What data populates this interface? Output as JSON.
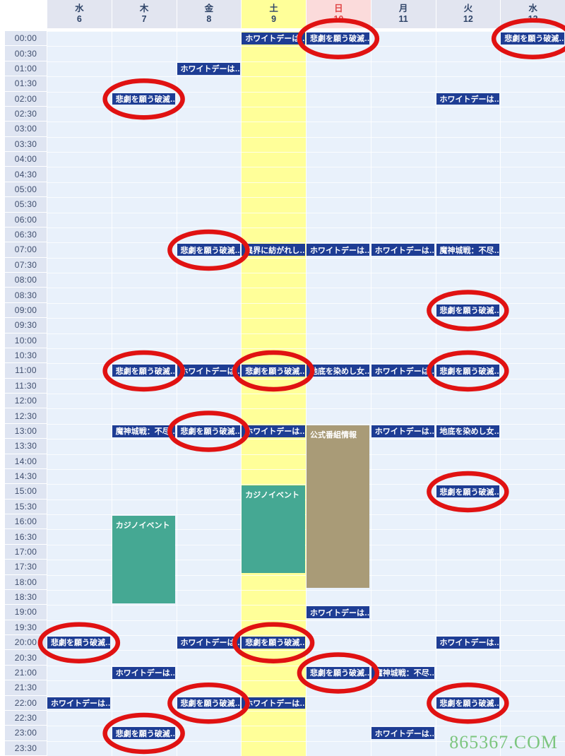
{
  "calendar": {
    "day_headers": [
      {
        "day": "水",
        "date": "6",
        "type": "normal"
      },
      {
        "day": "木",
        "date": "7",
        "type": "normal"
      },
      {
        "day": "金",
        "date": "8",
        "type": "normal"
      },
      {
        "day": "土",
        "date": "9",
        "type": "saturday"
      },
      {
        "day": "日",
        "date": "10",
        "type": "sunday"
      },
      {
        "day": "月",
        "date": "11",
        "type": "normal"
      },
      {
        "day": "火",
        "date": "12",
        "type": "normal"
      },
      {
        "day": "水",
        "date": "13",
        "type": "normal"
      }
    ],
    "time_slots": [
      "00:00",
      "00:30",
      "01:00",
      "01:30",
      "02:00",
      "02:30",
      "03:00",
      "03:30",
      "04:00",
      "04:30",
      "05:00",
      "05:30",
      "06:00",
      "06:30",
      "07:00",
      "07:30",
      "08:00",
      "08:30",
      "09:00",
      "09:30",
      "10:00",
      "10:30",
      "11:00",
      "11:30",
      "12:00",
      "12:30",
      "13:00",
      "13:30",
      "14:00",
      "14:30",
      "15:00",
      "15:30",
      "16:00",
      "16:30",
      "17:00",
      "17:30",
      "18:00",
      "18:30",
      "19:00",
      "19:30",
      "20:00",
      "20:30",
      "21:00",
      "21:30",
      "22:00",
      "22:30",
      "23:00",
      "23:30"
    ],
    "events": [
      {
        "day": 3,
        "time": "00:00",
        "slots": 1,
        "title": "ホワイトデーは…",
        "color": "blue",
        "circled": false
      },
      {
        "day": 4,
        "time": "00:00",
        "slots": 1,
        "title": "悲劇を願う破滅…",
        "color": "blue",
        "circled": true
      },
      {
        "day": 7,
        "time": "00:00",
        "slots": 1,
        "title": "悲劇を願う破滅…",
        "color": "blue",
        "circled": true
      },
      {
        "day": 2,
        "time": "01:00",
        "slots": 1,
        "title": "ホワイトデーは…",
        "color": "blue",
        "circled": false
      },
      {
        "day": 1,
        "time": "02:00",
        "slots": 1,
        "title": "悲劇を願う破滅…",
        "color": "blue",
        "circled": true
      },
      {
        "day": 6,
        "time": "02:00",
        "slots": 1,
        "title": "ホワイトデーは…",
        "color": "blue",
        "circled": false
      },
      {
        "day": 2,
        "time": "07:00",
        "slots": 1,
        "title": "悲劇を願う破滅…",
        "color": "blue",
        "circled": true
      },
      {
        "day": 3,
        "time": "07:00",
        "slots": 1,
        "title": "異界に紡がれし…",
        "color": "blue",
        "circled": false
      },
      {
        "day": 4,
        "time": "07:00",
        "slots": 1,
        "title": "ホワイトデーは…",
        "color": "blue",
        "circled": false
      },
      {
        "day": 5,
        "time": "07:00",
        "slots": 1,
        "title": "ホワイトデーは…",
        "color": "blue",
        "circled": false
      },
      {
        "day": 6,
        "time": "07:00",
        "slots": 1,
        "title": "魔神城戦：不尽…",
        "color": "blue",
        "circled": false
      },
      {
        "day": 6,
        "time": "09:00",
        "slots": 1,
        "title": "悲劇を願う破滅…",
        "color": "blue",
        "circled": true
      },
      {
        "day": 1,
        "time": "11:00",
        "slots": 1,
        "title": "悲劇を願う破滅…",
        "color": "blue",
        "circled": true
      },
      {
        "day": 2,
        "time": "11:00",
        "slots": 1,
        "title": "ホワイトデーは…",
        "color": "blue",
        "circled": false
      },
      {
        "day": 3,
        "time": "11:00",
        "slots": 1,
        "title": "悲劇を願う破滅…",
        "color": "blue",
        "circled": true
      },
      {
        "day": 4,
        "time": "11:00",
        "slots": 1,
        "title": "地底を染めし女…",
        "color": "blue",
        "circled": false
      },
      {
        "day": 5,
        "time": "11:00",
        "slots": 1,
        "title": "ホワイトデーは…",
        "color": "blue",
        "circled": false
      },
      {
        "day": 6,
        "time": "11:00",
        "slots": 1,
        "title": "悲劇を願う破滅…",
        "color": "blue",
        "circled": true
      },
      {
        "day": 1,
        "time": "13:00",
        "slots": 1,
        "title": "魔神城戦：不尽…",
        "color": "blue",
        "circled": false
      },
      {
        "day": 2,
        "time": "13:00",
        "slots": 1,
        "title": "悲劇を願う破滅…",
        "color": "blue",
        "circled": true
      },
      {
        "day": 3,
        "time": "13:00",
        "slots": 1,
        "title": "ホワイトデーは…",
        "color": "blue",
        "circled": false
      },
      {
        "day": 4,
        "time": "13:00",
        "slots": 11,
        "title": "公式番組情報",
        "color": "tan",
        "circled": false
      },
      {
        "day": 5,
        "time": "13:00",
        "slots": 1,
        "title": "ホワイトデーは…",
        "color": "blue",
        "circled": false
      },
      {
        "day": 6,
        "time": "13:00",
        "slots": 1,
        "title": "地底を染めし女…",
        "color": "blue",
        "circled": false
      },
      {
        "day": 3,
        "time": "15:00",
        "slots": 6,
        "title": "カジノイベント",
        "color": "teal",
        "circled": false
      },
      {
        "day": 6,
        "time": "15:00",
        "slots": 1,
        "title": "悲劇を願う破滅…",
        "color": "blue",
        "circled": true
      },
      {
        "day": 1,
        "time": "16:00",
        "slots": 6,
        "title": "カジノイベント",
        "color": "teal",
        "circled": false
      },
      {
        "day": 4,
        "time": "19:00",
        "slots": 1,
        "title": "ホワイトデーは…",
        "color": "blue",
        "circled": false
      },
      {
        "day": 0,
        "time": "20:00",
        "slots": 1,
        "title": "悲劇を願う破滅…",
        "color": "blue",
        "circled": true
      },
      {
        "day": 2,
        "time": "20:00",
        "slots": 1,
        "title": "ホワイトデーは…",
        "color": "blue",
        "circled": false
      },
      {
        "day": 3,
        "time": "20:00",
        "slots": 1,
        "title": "悲劇を願う破滅…",
        "color": "blue",
        "circled": true
      },
      {
        "day": 6,
        "time": "20:00",
        "slots": 1,
        "title": "ホワイトデーは…",
        "color": "blue",
        "circled": false
      },
      {
        "day": 1,
        "time": "21:00",
        "slots": 1,
        "title": "ホワイトデーは…",
        "color": "blue",
        "circled": false
      },
      {
        "day": 4,
        "time": "21:00",
        "slots": 1,
        "title": "悲劇を願う破滅…",
        "color": "blue",
        "circled": true
      },
      {
        "day": 5,
        "time": "21:00",
        "slots": 1,
        "title": "魔神城戦：不尽…",
        "color": "blue",
        "circled": false
      },
      {
        "day": 0,
        "time": "22:00",
        "slots": 1,
        "title": "ホワイトデーは…",
        "color": "blue",
        "circled": false
      },
      {
        "day": 2,
        "time": "22:00",
        "slots": 1,
        "title": "悲劇を願う破滅…",
        "color": "blue",
        "circled": true
      },
      {
        "day": 3,
        "time": "22:00",
        "slots": 1,
        "title": "ホワイトデーは…",
        "color": "blue",
        "circled": false
      },
      {
        "day": 6,
        "time": "22:00",
        "slots": 1,
        "title": "悲劇を願う破滅…",
        "color": "blue",
        "circled": true
      },
      {
        "day": 1,
        "time": "23:00",
        "slots": 1,
        "title": "悲劇を願う破滅…",
        "color": "blue",
        "circled": true
      },
      {
        "day": 5,
        "time": "23:00",
        "slots": 1,
        "title": "ホワイトデーは…",
        "color": "blue",
        "circled": false
      }
    ],
    "watermark": "865367.COM"
  },
  "colors": {
    "event_blue": "#1e3d94",
    "event_teal": "#45a893",
    "event_tan": "#a99b77",
    "annotation_red": "#e01212",
    "saturday_yellow": "#ffff99",
    "sunday_pink": "#fbdbdb",
    "sunday_text_red": "#e04545",
    "header_bg": "#e2e5f0",
    "header_text": "#2f4468",
    "time_bg": "#dfe5f2",
    "time_text": "#3f4e6e",
    "cell_bg": "#e9f1fb",
    "watermark_green": "#7cc57e"
  }
}
